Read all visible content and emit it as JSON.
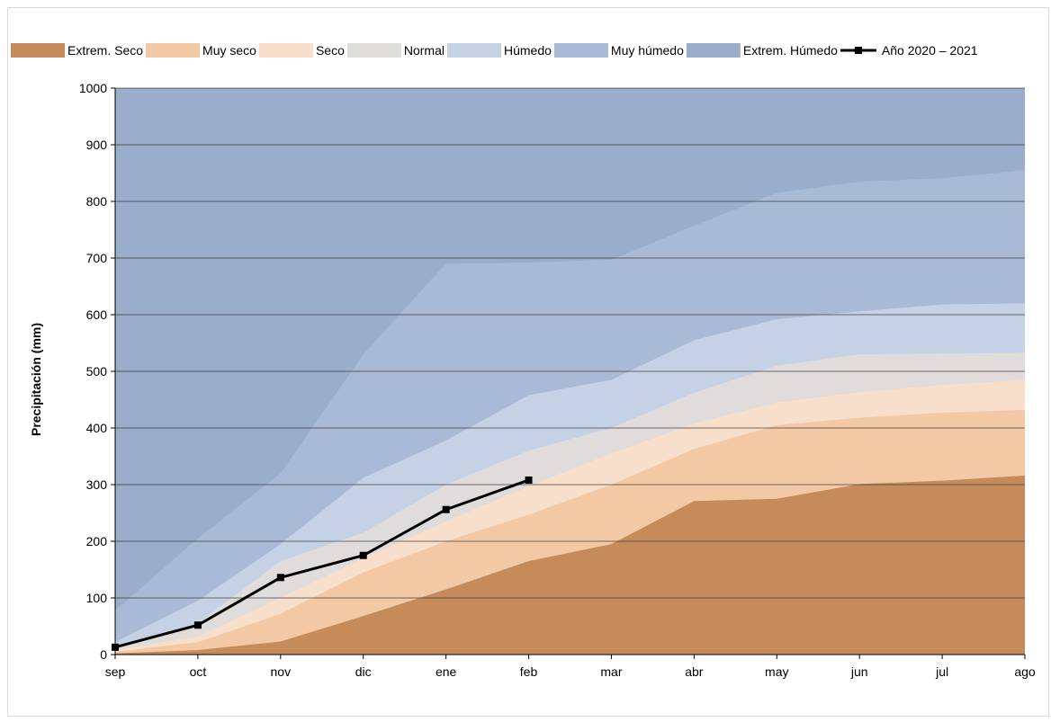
{
  "chart_data": {
    "type": "area",
    "categories": [
      "sep",
      "oct",
      "nov",
      "dic",
      "ene",
      "feb",
      "mar",
      "abr",
      "may",
      "jun",
      "jul",
      "ago"
    ],
    "ylabel": "Precipitación (mm)",
    "ylim": [
      0,
      1000
    ],
    "yticks": [
      0,
      100,
      200,
      300,
      400,
      500,
      600,
      700,
      800,
      900,
      1000
    ],
    "grid": true,
    "legend_position": "top",
    "bands": [
      {
        "name": "Extrem. Seco",
        "color": "#c68b5b",
        "upper": [
          2,
          8,
          23,
          68,
          115,
          165,
          195,
          271,
          275,
          301,
          307,
          316
        ]
      },
      {
        "name": "Muy seco",
        "color": "#f3c9a5",
        "upper": [
          5,
          22,
          72,
          145,
          200,
          247,
          300,
          363,
          405,
          418,
          427,
          432
        ]
      },
      {
        "name": "Seco",
        "color": "#f8dfcb",
        "upper": [
          8,
          32,
          100,
          170,
          235,
          297,
          355,
          408,
          445,
          463,
          476,
          485
        ]
      },
      {
        "name": "Normal",
        "color": "#e0dcdc",
        "upper": [
          13,
          55,
          165,
          215,
          300,
          360,
          400,
          462,
          510,
          530,
          531,
          533
        ]
      },
      {
        "name": "Húmedo",
        "color": "#c5d2e5",
        "upper": [
          22,
          95,
          195,
          312,
          378,
          458,
          485,
          555,
          592,
          606,
          618,
          620
        ]
      },
      {
        "name": "Muy húmedo",
        "color": "#a9bad6",
        "upper": [
          78,
          205,
          320,
          530,
          690,
          692,
          697,
          757,
          815,
          835,
          841,
          855
        ]
      },
      {
        "name": "Extrem. Húmedo",
        "color": "#9aaecb",
        "upper": [
          1000,
          1000,
          1000,
          1000,
          1000,
          1000,
          1000,
          1000,
          1000,
          1000,
          1000,
          1000
        ]
      }
    ],
    "series": [
      {
        "name": "Año 2020 – 2021",
        "color": "#000000",
        "x": [
          "sep",
          "oct",
          "nov",
          "dic",
          "ene",
          "feb"
        ],
        "values": [
          13,
          52,
          136,
          175,
          256,
          308
        ]
      }
    ]
  }
}
